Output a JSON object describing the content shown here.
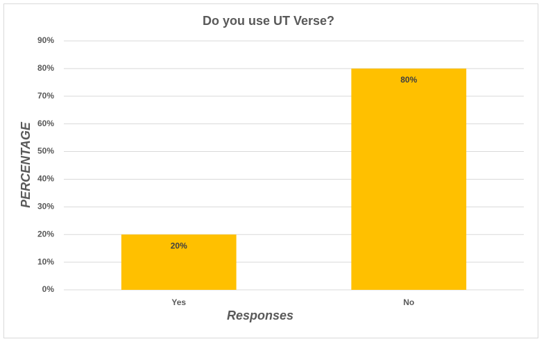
{
  "chart_data": {
    "type": "bar",
    "title": "Do you use UT Verse?",
    "x_label": "Responses",
    "y_label": "PERCENTAGE",
    "categories": [
      "Yes",
      "No"
    ],
    "values": [
      20,
      80
    ],
    "value_labels": [
      "20%",
      "80%"
    ],
    "color": "#ffc000",
    "ylim": [
      0,
      90
    ],
    "yticks": [
      {
        "value": 0,
        "label": "0%"
      },
      {
        "value": 10,
        "label": "10%"
      },
      {
        "value": 20,
        "label": "20%"
      },
      {
        "value": 30,
        "label": "30%"
      },
      {
        "value": 40,
        "label": "40%"
      },
      {
        "value": 50,
        "label": "50%"
      },
      {
        "value": 60,
        "label": "60%"
      },
      {
        "value": 70,
        "label": "70%"
      },
      {
        "value": 80,
        "label": "80%"
      },
      {
        "value": 90,
        "label": "90%"
      }
    ],
    "grid": true
  }
}
